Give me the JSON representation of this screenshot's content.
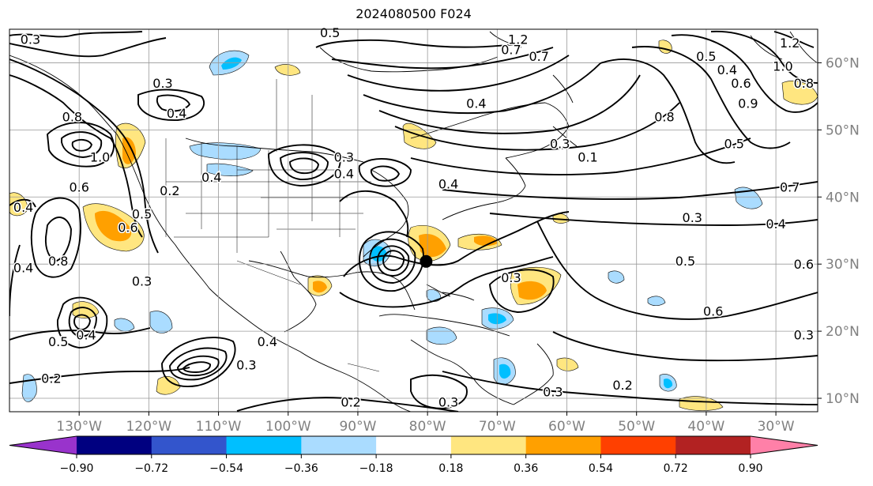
{
  "title": "2024080500 F024",
  "map": {
    "lon_range": [
      -140,
      -24
    ],
    "lat_range": [
      8,
      65
    ],
    "lon_ticks": [
      {
        "value": -130,
        "label": "130°W"
      },
      {
        "value": -120,
        "label": "120°W"
      },
      {
        "value": -110,
        "label": "110°W"
      },
      {
        "value": -100,
        "label": "100°W"
      },
      {
        "value": -90,
        "label": "90°W"
      },
      {
        "value": -80,
        "label": "80°W"
      },
      {
        "value": -70,
        "label": "70°W"
      },
      {
        "value": -60,
        "label": "60°W"
      },
      {
        "value": -50,
        "label": "50°W"
      },
      {
        "value": -40,
        "label": "40°W"
      },
      {
        "value": -30,
        "label": "30°W"
      }
    ],
    "lat_ticks": [
      {
        "value": 60,
        "label": "60°N"
      },
      {
        "value": 50,
        "label": "50°N"
      },
      {
        "value": 40,
        "label": "40°N"
      },
      {
        "value": 30,
        "label": "30°N"
      },
      {
        "value": 20,
        "label": "20°N"
      },
      {
        "value": 10,
        "label": "10°N"
      }
    ],
    "tick_label_color": "#808080",
    "grid": true,
    "storm_center": {
      "lon": -80.2,
      "lat": 30.4
    }
  },
  "colorbar": {
    "colors": [
      "#9933cc",
      "#000080",
      "#3355cc",
      "#00bfff",
      "#aadcff",
      "#ffffff",
      "#ffe680",
      "#ffa000",
      "#ff4000",
      "#b22222",
      "#ff80a8"
    ],
    "tick_labels": [
      "−0.90",
      "−0.72",
      "−0.54",
      "−0.36",
      "−0.18",
      "0.18",
      "0.36",
      "0.54",
      "0.72",
      "0.90"
    ]
  },
  "contour_labels": [
    {
      "text": "0.3",
      "lon": -137,
      "lat": 63.5
    },
    {
      "text": "0.5",
      "lon": -94,
      "lat": 64.5
    },
    {
      "text": "1.2",
      "lon": -67,
      "lat": 63.5
    },
    {
      "text": "0.7",
      "lon": -68,
      "lat": 62
    },
    {
      "text": "0.7",
      "lon": -64,
      "lat": 61
    },
    {
      "text": "0.5",
      "lon": -40,
      "lat": 61
    },
    {
      "text": "0.4",
      "lon": -37,
      "lat": 59
    },
    {
      "text": "1.2",
      "lon": -28,
      "lat": 63
    },
    {
      "text": "1.0",
      "lon": -29,
      "lat": 59.5
    },
    {
      "text": "0.8",
      "lon": -26,
      "lat": 57
    },
    {
      "text": "0.6",
      "lon": -35,
      "lat": 57
    },
    {
      "text": "0.9",
      "lon": -34,
      "lat": 54
    },
    {
      "text": "0.3",
      "lon": -118,
      "lat": 57
    },
    {
      "text": "0.4",
      "lon": -116,
      "lat": 52.5
    },
    {
      "text": "0.4",
      "lon": -73,
      "lat": 54
    },
    {
      "text": "0.8",
      "lon": -46,
      "lat": 52
    },
    {
      "text": "0.5",
      "lon": -36,
      "lat": 48
    },
    {
      "text": "0.3",
      "lon": -61,
      "lat": 48
    },
    {
      "text": "0.1",
      "lon": -57,
      "lat": 46
    },
    {
      "text": "0.7",
      "lon": -28,
      "lat": 41.5
    },
    {
      "text": "0.8",
      "lon": -131,
      "lat": 52
    },
    {
      "text": "1.0",
      "lon": -127,
      "lat": 46
    },
    {
      "text": "0.6",
      "lon": -130,
      "lat": 41.5
    },
    {
      "text": "0.2",
      "lon": -117,
      "lat": 41
    },
    {
      "text": "0.4",
      "lon": -111,
      "lat": 43
    },
    {
      "text": "0.3",
      "lon": -92,
      "lat": 46
    },
    {
      "text": "0.4",
      "lon": -92,
      "lat": 43.5
    },
    {
      "text": "0.4",
      "lon": -77,
      "lat": 42
    },
    {
      "text": "0.4",
      "lon": -138,
      "lat": 38.5
    },
    {
      "text": "0.5",
      "lon": -121,
      "lat": 37.5
    },
    {
      "text": "0.6",
      "lon": -123,
      "lat": 35.5
    },
    {
      "text": "0.3",
      "lon": -42,
      "lat": 37
    },
    {
      "text": "0.4",
      "lon": -30,
      "lat": 36
    },
    {
      "text": "0.8",
      "lon": -133,
      "lat": 30.5
    },
    {
      "text": "0.4",
      "lon": -138,
      "lat": 29.5
    },
    {
      "text": "0.3",
      "lon": -121,
      "lat": 27.5
    },
    {
      "text": "0.3",
      "lon": -68,
      "lat": 28
    },
    {
      "text": "0.5",
      "lon": -43,
      "lat": 30.5
    },
    {
      "text": "0.6",
      "lon": -26,
      "lat": 30
    },
    {
      "text": "0.6",
      "lon": -39,
      "lat": 23
    },
    {
      "text": "0.3",
      "lon": -26,
      "lat": 19.5
    },
    {
      "text": "0.5",
      "lon": -133,
      "lat": 18.5
    },
    {
      "text": "0.4",
      "lon": -129,
      "lat": 19.5
    },
    {
      "text": "0.3",
      "lon": -106,
      "lat": 15
    },
    {
      "text": "0.4",
      "lon": -103,
      "lat": 18.5
    },
    {
      "text": "0.2",
      "lon": -134,
      "lat": 13
    },
    {
      "text": "0.2",
      "lon": -91,
      "lat": 9.5
    },
    {
      "text": "0.3",
      "lon": -77,
      "lat": 9.5
    },
    {
      "text": "0.3",
      "lon": -62,
      "lat": 11
    },
    {
      "text": "0.2",
      "lon": -52,
      "lat": 12
    }
  ]
}
